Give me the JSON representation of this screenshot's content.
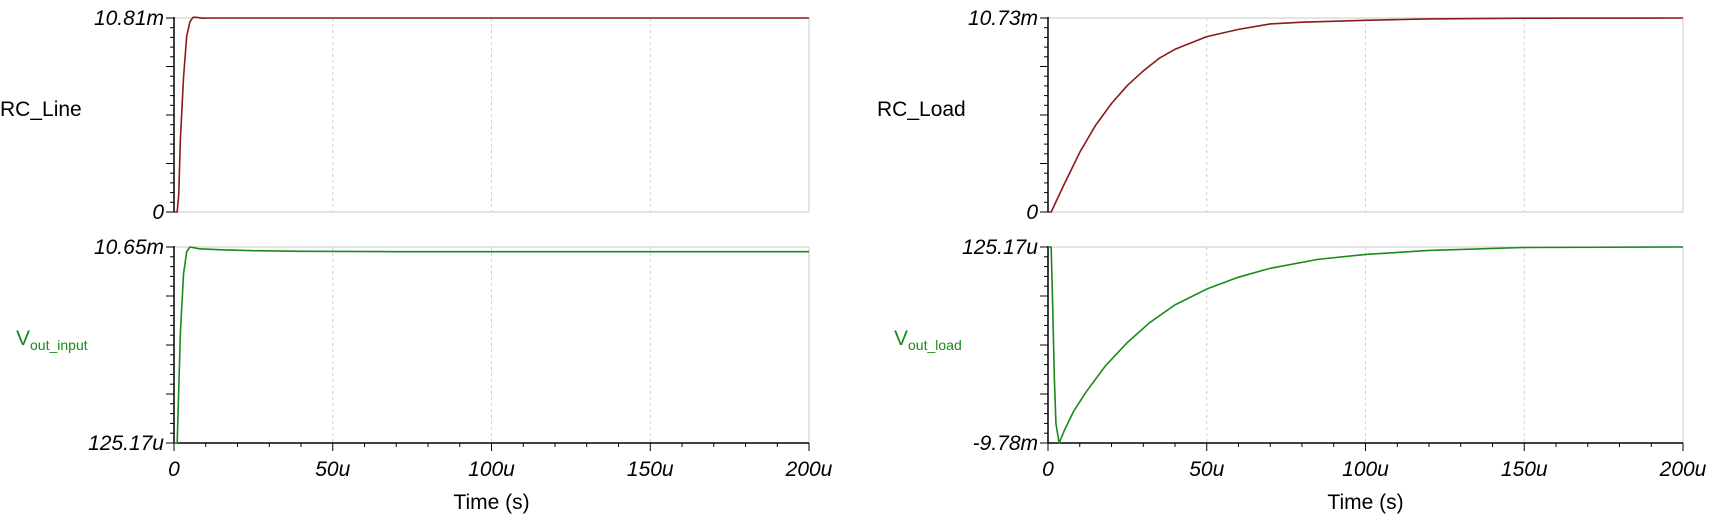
{
  "colors": {
    "red": "#8b1a1a",
    "green": "#1a8a1a",
    "axis": "#000000",
    "grid": "#d0d0d0",
    "frame": "#c8c8c8"
  },
  "chart_data": [
    {
      "type": "line",
      "series_label": "RC_Line",
      "series_label_sub": "",
      "color": "red",
      "y_ticks": [
        "10.81m",
        "0"
      ],
      "ylim": [
        0,
        0.01081
      ],
      "xlim": [
        0,
        200
      ],
      "x_tick_values": [
        0,
        50,
        100,
        150,
        200
      ],
      "x_tick_labels": [
        "0",
        "50u",
        "100u",
        "150u",
        "200u"
      ],
      "xlabel": "",
      "series": [
        {
          "name": "RC_Line",
          "points": [
            [
              0,
              0
            ],
            [
              1,
              0
            ],
            [
              1.5,
              0.001
            ],
            [
              2,
              0.004
            ],
            [
              3,
              0.0075
            ],
            [
              4,
              0.0098
            ],
            [
              5,
              0.0106
            ],
            [
              6,
              0.01085
            ],
            [
              7,
              0.01085
            ],
            [
              9,
              0.0108
            ],
            [
              12,
              0.01081
            ],
            [
              200,
              0.01081
            ]
          ]
        }
      ]
    },
    {
      "type": "line",
      "series_label": "V",
      "series_label_sub": "out_input",
      "color": "green",
      "y_ticks": [
        "10.65m",
        "125.17u"
      ],
      "ylim": [
        0.00012517,
        0.01065
      ],
      "xlim": [
        0,
        200
      ],
      "x_tick_values": [
        0,
        50,
        100,
        150,
        200
      ],
      "x_tick_labels": [
        "0",
        "50u",
        "100u",
        "150u",
        "200u"
      ],
      "xlabel": "Time (s)",
      "series": [
        {
          "name": "V out_input",
          "points": [
            [
              0,
              0.00012517
            ],
            [
              1,
              0.00012517
            ],
            [
              1.5,
              0.003
            ],
            [
              2,
              0.006
            ],
            [
              3,
              0.0092
            ],
            [
              4,
              0.0104
            ],
            [
              5,
              0.01065
            ],
            [
              6,
              0.01062
            ],
            [
              8,
              0.01055
            ],
            [
              15,
              0.0105
            ],
            [
              25,
              0.01045
            ],
            [
              40,
              0.01042
            ],
            [
              70,
              0.0104
            ],
            [
              120,
              0.0104
            ],
            [
              200,
              0.0104
            ]
          ]
        }
      ]
    },
    {
      "type": "line",
      "series_label": "RC_Load",
      "series_label_sub": "",
      "color": "red",
      "y_ticks": [
        "10.73m",
        "0"
      ],
      "ylim": [
        0,
        0.01073
      ],
      "xlim": [
        0,
        200
      ],
      "x_tick_values": [
        0,
        50,
        100,
        150,
        200
      ],
      "x_tick_labels": [
        "0",
        "50u",
        "100u",
        "150u",
        "200u"
      ],
      "xlabel": "",
      "series": [
        {
          "name": "RC_Load",
          "points": [
            [
              0,
              0
            ],
            [
              1,
              0
            ],
            [
              5,
              0.0015
            ],
            [
              10,
              0.0033
            ],
            [
              15,
              0.0048
            ],
            [
              20,
              0.006
            ],
            [
              25,
              0.007
            ],
            [
              30,
              0.0078
            ],
            [
              35,
              0.0085
            ],
            [
              40,
              0.009
            ],
            [
              50,
              0.0097
            ],
            [
              60,
              0.0101
            ],
            [
              70,
              0.0104
            ],
            [
              80,
              0.0105
            ],
            [
              100,
              0.0106
            ],
            [
              120,
              0.01068
            ],
            [
              150,
              0.01072
            ],
            [
              200,
              0.01073
            ]
          ]
        }
      ]
    },
    {
      "type": "line",
      "series_label": "V",
      "series_label_sub": "out_load",
      "color": "green",
      "y_ticks": [
        "125.17u",
        "-9.78m"
      ],
      "ylim": [
        -0.00978,
        0.00012517
      ],
      "xlim": [
        0,
        200
      ],
      "x_tick_values": [
        0,
        50,
        100,
        150,
        200
      ],
      "x_tick_labels": [
        "0",
        "50u",
        "100u",
        "150u",
        "200u"
      ],
      "xlabel": "Time (s)",
      "series": [
        {
          "name": "V out_load",
          "points": [
            [
              0,
              0.00012517
            ],
            [
              1,
              0.00012517
            ],
            [
              1.5,
              -0.003
            ],
            [
              2,
              -0.0065
            ],
            [
              2.5,
              -0.0088
            ],
            [
              3.5,
              -0.00978
            ],
            [
              5,
              -0.0092
            ],
            [
              8,
              -0.0082
            ],
            [
              12,
              -0.0072
            ],
            [
              18,
              -0.0059
            ],
            [
              25,
              -0.0047
            ],
            [
              32,
              -0.0037
            ],
            [
              40,
              -0.0028
            ],
            [
              50,
              -0.002
            ],
            [
              60,
              -0.0014
            ],
            [
              70,
              -0.00095
            ],
            [
              85,
              -0.0005
            ],
            [
              100,
              -0.00025
            ],
            [
              120,
              -5e-05
            ],
            [
              150,
              0.0001
            ],
            [
              200,
              0.00012517
            ]
          ]
        }
      ]
    }
  ]
}
